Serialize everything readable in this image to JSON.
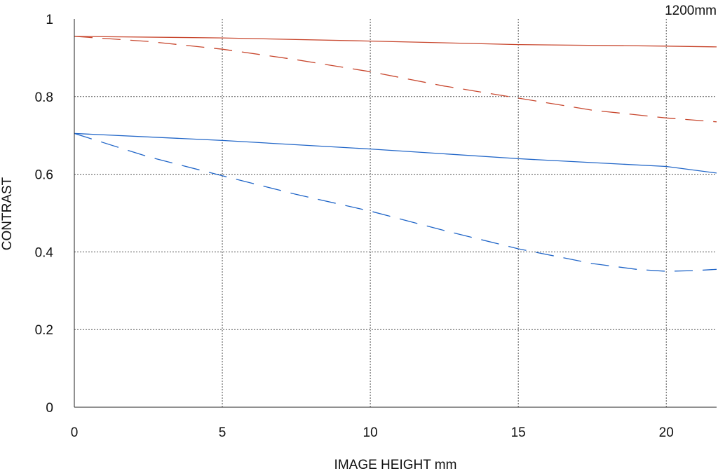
{
  "chart_data": {
    "type": "line",
    "title": "",
    "corner_label": "1200mm",
    "xlabel": "IMAGE HEIGHT  mm",
    "ylabel": "CONTRAST",
    "xlim": [
      0,
      21.7
    ],
    "ylim": [
      0,
      1
    ],
    "xticks": [
      0,
      5,
      10,
      15,
      20
    ],
    "yticks": [
      0,
      0.2,
      0.4,
      0.6,
      0.8,
      1
    ],
    "ytick_labels": [
      "0",
      "0.2",
      "0.4",
      "0.6",
      "0.8",
      "1"
    ],
    "grid": true,
    "series": [
      {
        "color": "#c8472e",
        "dash": "solid",
        "x": [
          0,
          5,
          10,
          15,
          20,
          21.7
        ],
        "y": [
          0.955,
          0.951,
          0.943,
          0.934,
          0.93,
          0.928
        ]
      },
      {
        "color": "#c8472e",
        "dash": "dashed",
        "x": [
          0,
          2.5,
          5,
          7.5,
          10,
          12.5,
          15,
          17.5,
          20,
          21.7
        ],
        "y": [
          0.955,
          0.942,
          0.922,
          0.895,
          0.864,
          0.827,
          0.796,
          0.765,
          0.745,
          0.735
        ]
      },
      {
        "color": "#2166c8",
        "dash": "solid",
        "x": [
          0,
          5,
          10,
          15,
          17.5,
          20,
          21.7
        ],
        "y": [
          0.705,
          0.687,
          0.665,
          0.64,
          0.63,
          0.62,
          0.603
        ]
      },
      {
        "color": "#2166c8",
        "dash": "dashed",
        "x": [
          0,
          2.5,
          5,
          7.5,
          10,
          12.5,
          15,
          17.5,
          19,
          20,
          21,
          21.7
        ],
        "y": [
          0.705,
          0.645,
          0.596,
          0.548,
          0.505,
          0.455,
          0.408,
          0.37,
          0.355,
          0.35,
          0.352,
          0.355
        ]
      }
    ]
  }
}
